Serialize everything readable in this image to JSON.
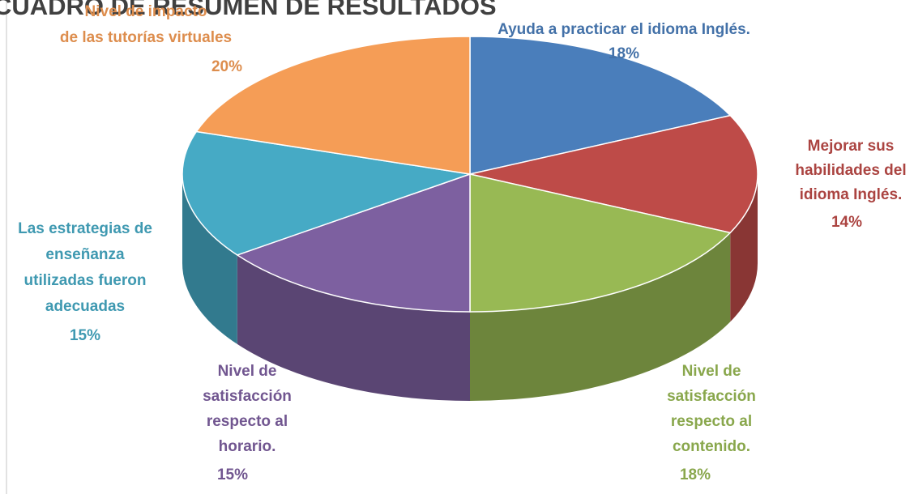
{
  "chart_data": {
    "type": "pie3d",
    "title": "CUADRO DE RESUMEN DE RESULTADOS",
    "categories": [
      "Ayuda a practicar  el idioma Inglés.",
      "Mejorar sus\nhabilidades del\nidioma Inglés.",
      "Nivel de\nsatisfacción\nrespecto al\ncontenido.",
      "Nivel de\nsatisfacción\nrespecto al\nhorario.",
      "Las estrategias de\nenseñanza\nutilizadas fueron\nadecuadas",
      "Nivel de impacto\nde las tutorías  virtuales"
    ],
    "values": [
      18,
      14,
      18,
      15,
      15,
      20
    ],
    "value_labels": [
      "18%",
      "14%",
      "18%",
      "15%",
      "15%",
      "20%"
    ],
    "colors": [
      "#4a7ebb",
      "#be4b48",
      "#98b954",
      "#7d60a0",
      "#46aac5",
      "#f59d56"
    ]
  }
}
